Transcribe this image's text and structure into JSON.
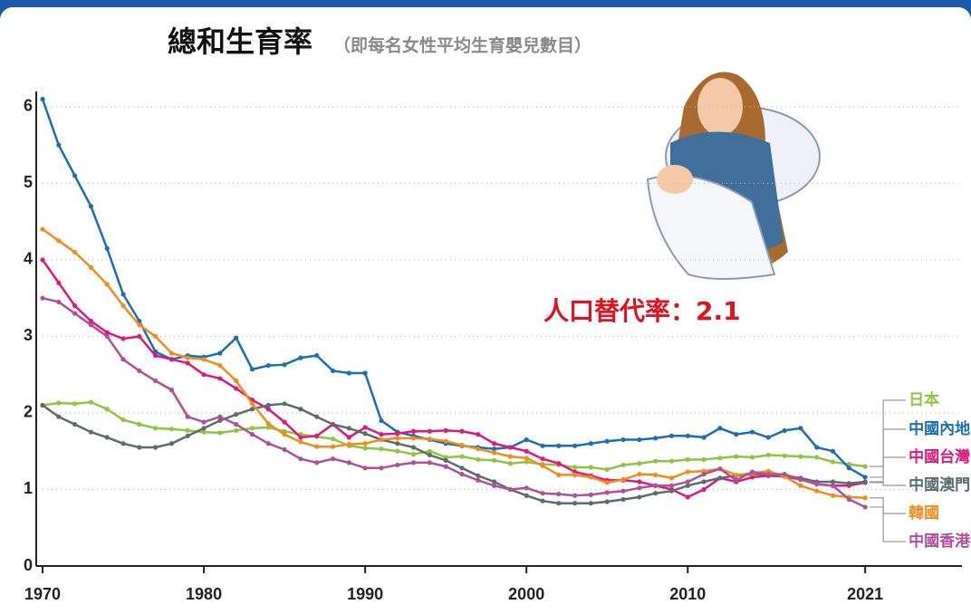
{
  "chart_data": {
    "type": "line",
    "title": "總和生育率",
    "subtitle": "（即每名女性平均生育嬰兒數目）",
    "annotation": "人口替代率：2.1",
    "x": [
      1970,
      1971,
      1972,
      1973,
      1974,
      1975,
      1976,
      1977,
      1978,
      1979,
      1980,
      1981,
      1982,
      1983,
      1984,
      1985,
      1986,
      1987,
      1988,
      1989,
      1990,
      1991,
      1992,
      1993,
      1994,
      1995,
      1996,
      1997,
      1998,
      1999,
      2000,
      2001,
      2002,
      2003,
      2004,
      2005,
      2006,
      2007,
      2008,
      2009,
      2010,
      2011,
      2012,
      2013,
      2014,
      2015,
      2016,
      2017,
      2018,
      2019,
      2020,
      2021
    ],
    "xlim": [
      1970,
      2027
    ],
    "xticks": [
      1970,
      1980,
      1990,
      2000,
      2010,
      2021
    ],
    "ylim": [
      0,
      6.2
    ],
    "yticks": [
      0,
      1,
      2,
      3,
      4,
      5,
      6
    ],
    "grid": true,
    "series": [
      {
        "name": "日本",
        "color": "#8dc63f",
        "values": [
          2.1,
          2.13,
          2.12,
          2.14,
          2.05,
          1.91,
          1.85,
          1.8,
          1.79,
          1.77,
          1.75,
          1.74,
          1.77,
          1.8,
          1.81,
          1.76,
          1.72,
          1.69,
          1.66,
          1.57,
          1.54,
          1.53,
          1.5,
          1.46,
          1.5,
          1.42,
          1.43,
          1.39,
          1.38,
          1.34,
          1.36,
          1.33,
          1.32,
          1.29,
          1.29,
          1.26,
          1.32,
          1.34,
          1.37,
          1.37,
          1.39,
          1.39,
          1.41,
          1.43,
          1.42,
          1.45,
          1.44,
          1.43,
          1.42,
          1.36,
          1.33,
          1.3
        ]
      },
      {
        "name": "中國內地",
        "color": "#1a6fb5",
        "values": [
          6.1,
          5.5,
          5.1,
          4.7,
          4.15,
          3.55,
          3.2,
          2.8,
          2.7,
          2.75,
          2.73,
          2.78,
          2.98,
          2.57,
          2.62,
          2.63,
          2.72,
          2.75,
          2.55,
          2.52,
          2.52,
          1.9,
          1.75,
          1.7,
          1.65,
          1.6,
          1.57,
          1.55,
          1.53,
          1.55,
          1.65,
          1.57,
          1.57,
          1.57,
          1.6,
          1.63,
          1.65,
          1.65,
          1.67,
          1.7,
          1.7,
          1.68,
          1.8,
          1.72,
          1.75,
          1.68,
          1.77,
          1.8,
          1.55,
          1.5,
          1.28,
          1.16
        ]
      },
      {
        "name": "中國台灣",
        "color": "#e0197d",
        "values": [
          4.0,
          3.7,
          3.4,
          3.2,
          3.05,
          2.97,
          3.0,
          2.75,
          2.7,
          2.65,
          2.5,
          2.45,
          2.32,
          2.17,
          2.05,
          1.88,
          1.68,
          1.7,
          1.85,
          1.68,
          1.81,
          1.72,
          1.73,
          1.76,
          1.76,
          1.77,
          1.76,
          1.72,
          1.6,
          1.55,
          1.5,
          1.4,
          1.34,
          1.23,
          1.18,
          1.12,
          1.12,
          1.1,
          1.05,
          1.0,
          0.9,
          1.0,
          1.15,
          1.1,
          1.16,
          1.18,
          1.17,
          1.13,
          1.07,
          1.05,
          1.05,
          1.09
        ]
      },
      {
        "name": "中國澳門",
        "color": "#5a6e6a",
        "values": [
          2.1,
          1.95,
          1.85,
          1.75,
          1.68,
          1.6,
          1.55,
          1.55,
          1.6,
          1.7,
          1.8,
          1.9,
          1.98,
          2.05,
          2.1,
          2.12,
          2.05,
          1.95,
          1.85,
          1.8,
          1.73,
          1.65,
          1.6,
          1.55,
          1.45,
          1.38,
          1.28,
          1.18,
          1.1,
          1.0,
          0.92,
          0.85,
          0.82,
          0.82,
          0.82,
          0.84,
          0.87,
          0.9,
          0.95,
          0.98,
          1.05,
          1.1,
          1.15,
          1.18,
          1.2,
          1.2,
          1.18,
          1.15,
          1.1,
          1.1,
          1.08,
          1.1
        ]
      },
      {
        "name": "韓國",
        "color": "#f28c1c",
        "values": [
          4.4,
          4.25,
          4.1,
          3.9,
          3.68,
          3.4,
          3.15,
          3.0,
          2.78,
          2.72,
          2.7,
          2.62,
          2.42,
          2.12,
          1.86,
          1.72,
          1.62,
          1.56,
          1.56,
          1.59,
          1.6,
          1.65,
          1.67,
          1.67,
          1.66,
          1.63,
          1.58,
          1.53,
          1.48,
          1.43,
          1.41,
          1.31,
          1.19,
          1.19,
          1.16,
          1.09,
          1.13,
          1.2,
          1.19,
          1.15,
          1.23,
          1.24,
          1.27,
          1.19,
          1.21,
          1.24,
          1.17,
          1.05,
          0.98,
          0.92,
          0.9,
          0.89
        ]
      },
      {
        "name": "中國香港",
        "color": "#b0509a",
        "values": [
          3.5,
          3.45,
          3.3,
          3.15,
          3.0,
          2.7,
          2.55,
          2.42,
          2.3,
          1.95,
          1.88,
          1.95,
          1.85,
          1.72,
          1.6,
          1.52,
          1.4,
          1.35,
          1.4,
          1.35,
          1.28,
          1.28,
          1.32,
          1.35,
          1.35,
          1.3,
          1.2,
          1.12,
          1.05,
          1.0,
          1.02,
          0.95,
          0.94,
          0.92,
          0.93,
          0.96,
          0.98,
          1.02,
          1.05,
          1.05,
          1.1,
          1.2,
          1.27,
          1.12,
          1.23,
          1.2,
          1.2,
          1.13,
          1.07,
          1.05,
          0.87,
          0.77
        ]
      }
    ]
  }
}
